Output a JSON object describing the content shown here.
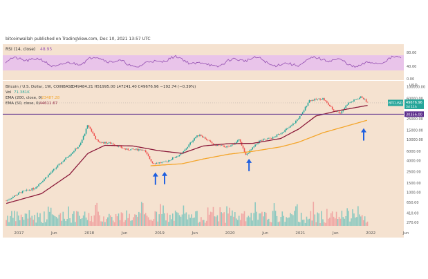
{
  "header": {
    "published": "bitcoinwallah published on TradingView.com, Dec 10, 2021 13:57 UTC"
  },
  "rsi": {
    "label": "RSI (14, close)",
    "value": "48.95",
    "ticks": [
      "80.00",
      "40.00",
      "0.00"
    ]
  },
  "legend": {
    "symbol": "Bitcoin / U.S. Dollar, 1W, COINBASE",
    "ohlc": "O49484.21 H51995.00 L47241.40 C49676.96 −192.74 (−0.39%)",
    "vol_label": "Vol",
    "vol_value": "71.381K",
    "ema200_label": "EMA (200, close, 0)",
    "ema200_value": "23487.28",
    "ema50_label": "EMA (50, close, 0)",
    "ema50_value": "44611.67"
  },
  "price_badge": {
    "ticker": "BTCUSD",
    "price": "49676.96",
    "sub": "3d 11h"
  },
  "level_badge": "30356.00",
  "currency": "USD",
  "colors": {
    "background": "#f5e2d0",
    "rsi_line": "#9b59b6",
    "rsi_band": "#e9c4ea",
    "ema50": "#8b1a3a",
    "ema200": "#f4a52a",
    "up": "#26a69a",
    "down": "#ef5350",
    "level": "#5b2c8b",
    "arrow": "#1e5fe0"
  },
  "chart_data": {
    "type": "candlestick",
    "title": "Bitcoin / U.S. Dollar, 1W, COINBASE",
    "y_scale": "log",
    "y_ticks": [
      "100000.00",
      "60000.00",
      "40000.00",
      "25000.00",
      "15000.00",
      "10000.00",
      "6000.00",
      "4000.00",
      "2500.00",
      "1500.00",
      "1000.00",
      "650.00",
      "410.00",
      "270.00"
    ],
    "x_ticks": [
      "2017",
      "Jun",
      "2018",
      "Jun",
      "2019",
      "Jun",
      "2020",
      "Jun",
      "2021",
      "Jun",
      "2022",
      "Jun"
    ],
    "horizontal_level": 30356,
    "last_close": 49676.96,
    "ema200_last": 23487.28,
    "ema50_last": 44611.67,
    "price_path": [
      [
        2016.8,
        700
      ],
      [
        2017.0,
        1000
      ],
      [
        2017.2,
        1200
      ],
      [
        2017.45,
        2500
      ],
      [
        2017.65,
        4500
      ],
      [
        2017.85,
        8000
      ],
      [
        2017.96,
        19000
      ],
      [
        2018.1,
        9000
      ],
      [
        2018.3,
        8500
      ],
      [
        2018.5,
        6500
      ],
      [
        2018.75,
        6500
      ],
      [
        2018.88,
        3600
      ],
      [
        2019.05,
        3700
      ],
      [
        2019.3,
        5500
      ],
      [
        2019.48,
        11000
      ],
      [
        2019.55,
        12500
      ],
      [
        2019.75,
        8000
      ],
      [
        2019.96,
        7200
      ],
      [
        2020.12,
        10000
      ],
      [
        2020.2,
        5000
      ],
      [
        2020.4,
        9500
      ],
      [
        2020.6,
        11000
      ],
      [
        2020.85,
        18000
      ],
      [
        2021.0,
        30000
      ],
      [
        2021.1,
        55000
      ],
      [
        2021.3,
        60000
      ],
      [
        2021.45,
        36000
      ],
      [
        2021.55,
        32000
      ],
      [
        2021.65,
        48000
      ],
      [
        2021.85,
        65000
      ],
      [
        2021.94,
        49677
      ]
    ],
    "ema50_path": [
      [
        2016.8,
        620
      ],
      [
        2017.3,
        950
      ],
      [
        2017.7,
        2200
      ],
      [
        2017.96,
        5500
      ],
      [
        2018.2,
        7800
      ],
      [
        2018.6,
        7600
      ],
      [
        2018.96,
        6200
      ],
      [
        2019.3,
        5500
      ],
      [
        2019.6,
        7600
      ],
      [
        2019.96,
        8400
      ],
      [
        2020.3,
        8500
      ],
      [
        2020.7,
        10500
      ],
      [
        2020.96,
        16000
      ],
      [
        2021.2,
        28000
      ],
      [
        2021.5,
        35000
      ],
      [
        2021.94,
        44612
      ]
    ],
    "ema200_path": [
      [
        2018.85,
        3200
      ],
      [
        2019.3,
        3500
      ],
      [
        2019.6,
        4300
      ],
      [
        2019.96,
        5300
      ],
      [
        2020.3,
        6000
      ],
      [
        2020.7,
        7300
      ],
      [
        2020.96,
        9000
      ],
      [
        2021.3,
        13500
      ],
      [
        2021.6,
        17500
      ],
      [
        2021.94,
        23487
      ]
    ],
    "arrows": [
      2018.92,
      2019.05,
      2020.25,
      2021.88
    ]
  }
}
